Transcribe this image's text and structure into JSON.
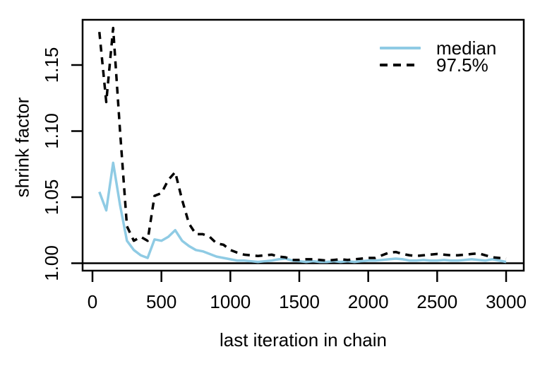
{
  "figure": {
    "background": "#ffffff"
  },
  "chart_data": {
    "type": "line",
    "title": "",
    "xlabel": "last iteration in chain",
    "ylabel": "shrink factor",
    "xlim": [
      -70,
      3100
    ],
    "ylim": [
      0.995,
      1.185
    ],
    "grid": false,
    "legend_position": "top-right",
    "reference_hline": 1.0,
    "x_ticks": {
      "values": [
        0,
        500,
        1000,
        1500,
        2000,
        2500,
        3000
      ],
      "labels": [
        "0",
        "500",
        "1000",
        "1500",
        "2000",
        "2500",
        "3000"
      ]
    },
    "y_ticks": {
      "values": [
        1.0,
        1.05,
        1.1,
        1.15
      ],
      "labels": [
        "1.00",
        "1.05",
        "1.10",
        "1.15"
      ]
    },
    "x": [
      50,
      100,
      150,
      200,
      250,
      300,
      350,
      400,
      450,
      500,
      550,
      600,
      650,
      700,
      750,
      800,
      850,
      900,
      950,
      1000,
      1050,
      1100,
      1150,
      1200,
      1250,
      1300,
      1350,
      1400,
      1450,
      1500,
      1550,
      1600,
      1650,
      1700,
      1750,
      1800,
      1850,
      1900,
      1950,
      2000,
      2050,
      2100,
      2150,
      2200,
      2250,
      2300,
      2350,
      2400,
      2450,
      2500,
      2550,
      2600,
      2650,
      2700,
      2750,
      2800,
      2850,
      2900,
      2950,
      3000
    ],
    "series": [
      {
        "name": "median",
        "style": "solid",
        "color": "#8FCBE4",
        "values": [
          1.054,
          1.04,
          1.076,
          1.044,
          1.017,
          1.01,
          1.006,
          1.004,
          1.018,
          1.017,
          1.02,
          1.025,
          1.017,
          1.013,
          1.01,
          1.009,
          1.007,
          1.005,
          1.004,
          1.003,
          1.002,
          1.002,
          1.0015,
          1.001,
          1.0015,
          1.002,
          1.003,
          1.0035,
          1.002,
          1.0015,
          1.001,
          1.0015,
          1.001,
          1.001,
          1.0015,
          1.001,
          1.0015,
          1.001,
          1.0015,
          1.002,
          1.002,
          1.0025,
          1.003,
          1.0035,
          1.003,
          1.002,
          1.002,
          1.0025,
          1.002,
          1.002,
          1.0025,
          1.002,
          1.002,
          1.0025,
          1.003,
          1.0025,
          1.002,
          1.003,
          1.002,
          1.001
        ]
      },
      {
        "name": "97.5%",
        "style": "dashed",
        "color": "#000000",
        "values": [
          1.175,
          1.122,
          1.178,
          1.1,
          1.028,
          1.017,
          1.02,
          1.017,
          1.051,
          1.053,
          1.063,
          1.069,
          1.048,
          1.03,
          1.022,
          1.022,
          1.02,
          1.015,
          1.014,
          1.01,
          1.008,
          1.0065,
          1.006,
          1.0055,
          1.006,
          1.0065,
          1.005,
          1.0045,
          1.0025,
          1.0025,
          1.003,
          1.003,
          1.0025,
          1.002,
          1.0025,
          1.003,
          1.0025,
          1.003,
          1.0035,
          1.004,
          1.004,
          1.006,
          1.008,
          1.0085,
          1.007,
          1.006,
          1.0055,
          1.006,
          1.0065,
          1.007,
          1.0065,
          1.006,
          1.006,
          1.0065,
          1.007,
          1.0075,
          1.006,
          1.0045,
          1.004,
          1.0035
        ]
      }
    ]
  }
}
